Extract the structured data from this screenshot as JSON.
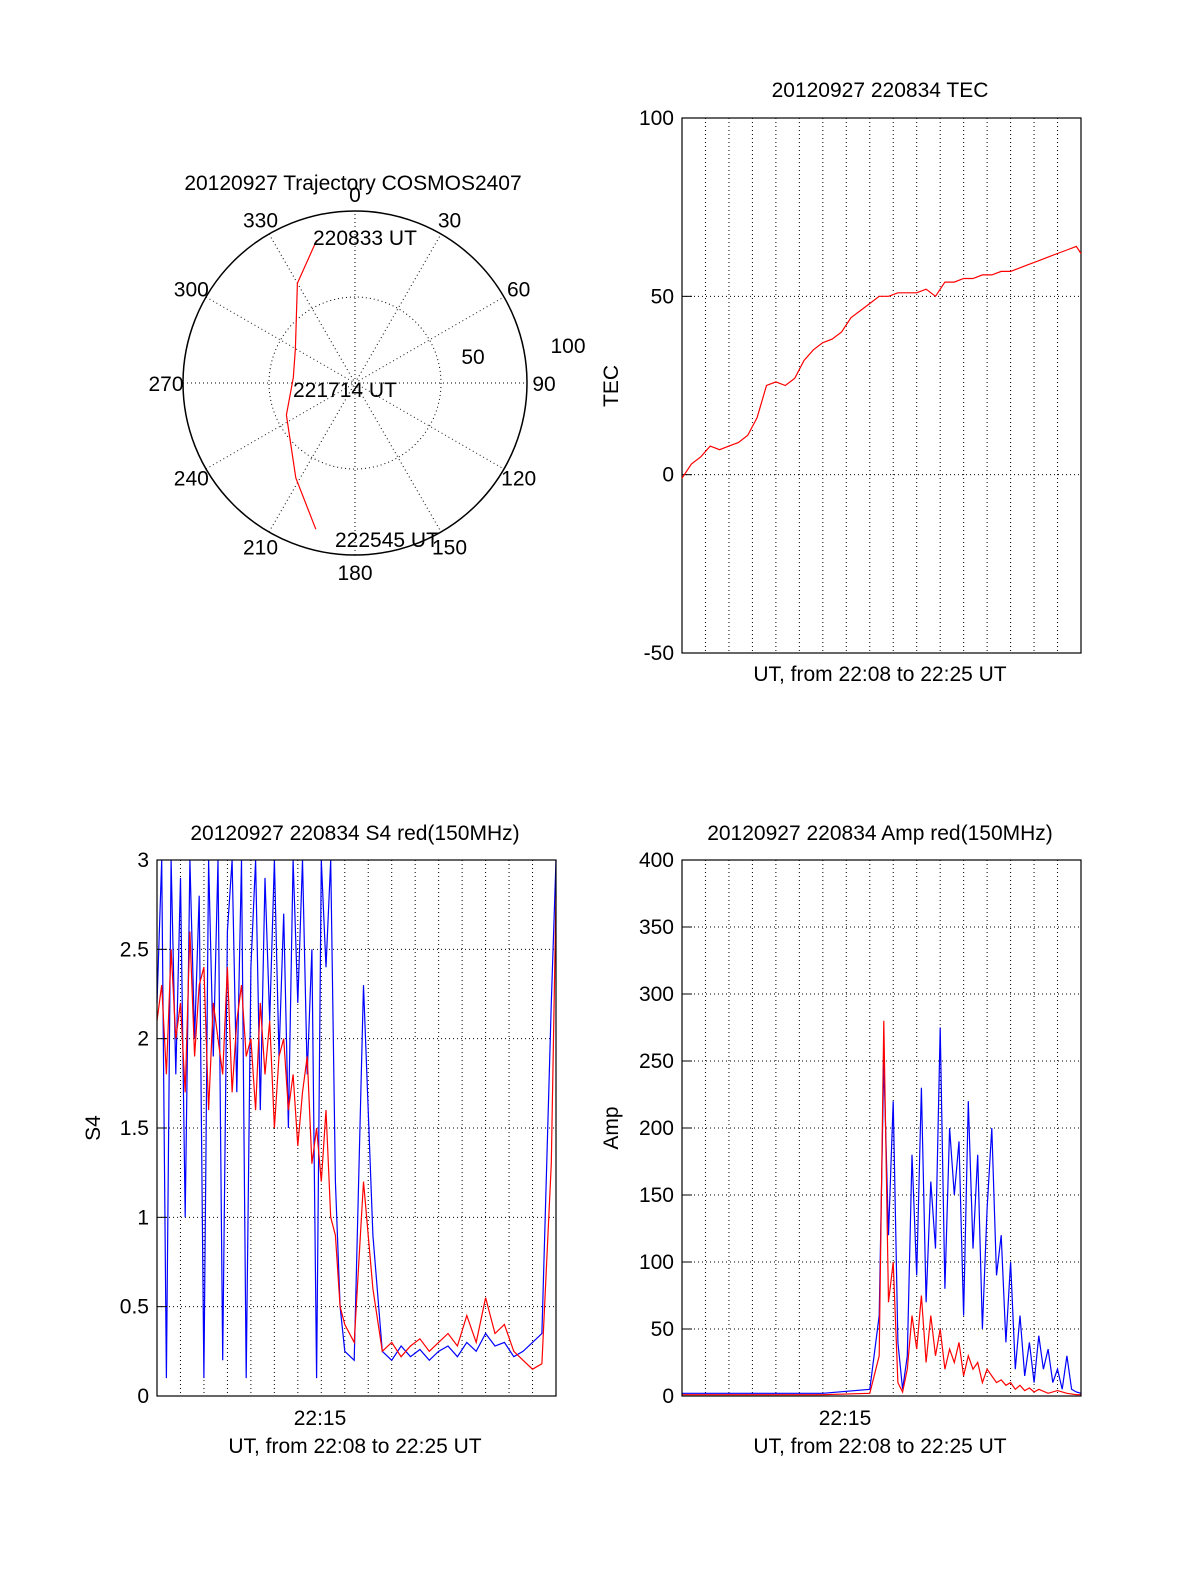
{
  "colors": {
    "red": "#ff0000",
    "blue": "#0000ff",
    "axis": "#000000"
  },
  "chart_data": [
    {
      "type": "polar",
      "title": "20120927 Trajectory COSMOS2407",
      "azimuth_labels": [
        "0",
        "30",
        "60",
        "90",
        "120",
        "150",
        "180",
        "210",
        "240",
        "270",
        "300",
        "330"
      ],
      "radial_labels": [
        "50",
        "100"
      ],
      "time_labels": {
        "start": "220833 UT",
        "middle": "221714 UT",
        "end": "222545 UT"
      },
      "series": [
        {
          "color": "red",
          "points": [
            {
              "az": 345,
              "r": 86
            },
            {
              "az": 330,
              "r": 67
            },
            {
              "az": 300,
              "r": 40
            },
            {
              "az": 275,
              "r": 36
            },
            {
              "az": 245,
              "r": 44
            },
            {
              "az": 212,
              "r": 65
            },
            {
              "az": 195,
              "r": 88
            }
          ]
        }
      ]
    },
    {
      "type": "line",
      "title": "20120927 220834 TEC",
      "xlabel": "UT, from 22:08 to 22:25 UT",
      "ylabel": "TEC",
      "ylim": [
        -50,
        100
      ],
      "yticks": [
        "-50",
        "0",
        "50",
        "100"
      ],
      "xlim_minutes": [
        0,
        17
      ],
      "grid": true,
      "series": [
        {
          "color": "red",
          "x": [
            0,
            0.4,
            0.8,
            1.2,
            1.6,
            2.0,
            2.4,
            2.8,
            3.2,
            3.6,
            4.0,
            4.4,
            4.8,
            5.2,
            5.6,
            6.0,
            6.4,
            6.8,
            7.2,
            7.6,
            8.0,
            8.4,
            8.8,
            9.2,
            9.6,
            10.0,
            10.4,
            10.8,
            11.2,
            11.6,
            12.0,
            12.4,
            12.8,
            13.2,
            13.6,
            14.0,
            14.4,
            14.8,
            15.2,
            15.6,
            16.0,
            16.4,
            16.8,
            17.0
          ],
          "y": [
            -1,
            3,
            5,
            8,
            7,
            8,
            9,
            11,
            16,
            25,
            26,
            25,
            27,
            32,
            35,
            37,
            38,
            40,
            44,
            46,
            48,
            50,
            50,
            51,
            51,
            51,
            52,
            50,
            54,
            54,
            55,
            55,
            56,
            56,
            57,
            57,
            58,
            59,
            60,
            61,
            62,
            63,
            64,
            62
          ]
        }
      ]
    },
    {
      "type": "line",
      "title": "20120927 220834 S4 red(150MHz)",
      "xlabel": "UT, from 22:08 to 22:25 UT",
      "ylabel": "S4",
      "ylim": [
        0,
        3
      ],
      "yticks": [
        "0",
        "0.5",
        "1",
        "1.5",
        "2",
        "2.5",
        "3"
      ],
      "xtick_label": "22:15",
      "xlim_minutes": [
        0,
        17
      ],
      "grid": true,
      "series": [
        {
          "color": "blue",
          "x": [
            0,
            0.2,
            0.4,
            0.6,
            0.8,
            1.0,
            1.2,
            1.4,
            1.6,
            1.8,
            2.0,
            2.2,
            2.4,
            2.6,
            2.8,
            3.0,
            3.2,
            3.4,
            3.6,
            3.8,
            4.0,
            4.2,
            4.4,
            4.6,
            4.8,
            5.0,
            5.2,
            5.4,
            5.6,
            5.8,
            6.0,
            6.2,
            6.4,
            6.6,
            6.8,
            7.0,
            7.2,
            7.4,
            7.6,
            7.8,
            8.0,
            8.4,
            8.8,
            9.2,
            9.6,
            10.0,
            10.4,
            10.8,
            11.2,
            11.6,
            12.0,
            12.4,
            12.8,
            13.2,
            13.6,
            14.0,
            14.4,
            14.8,
            15.2,
            15.6,
            16.0,
            16.4,
            16.8,
            17.0
          ],
          "y": [
            2.2,
            3,
            0.1,
            3,
            1.8,
            2.9,
            1.0,
            3,
            2.0,
            2.8,
            0.1,
            3,
            1.9,
            3,
            0.2,
            2.6,
            3,
            1.7,
            3,
            0.1,
            2.4,
            3,
            1.6,
            2.9,
            2.1,
            3,
            1.9,
            2.7,
            1.5,
            3,
            2.2,
            3,
            1.8,
            2.5,
            0.1,
            3,
            2.4,
            3,
            1.2,
            0.5,
            0.25,
            0.2,
            2.3,
            0.9,
            0.25,
            0.2,
            0.28,
            0.22,
            0.26,
            0.2,
            0.25,
            0.28,
            0.22,
            0.3,
            0.25,
            0.35,
            0.28,
            0.3,
            0.22,
            0.25,
            0.3,
            0.35,
            2.2,
            3
          ]
        },
        {
          "color": "red",
          "x": [
            0,
            0.2,
            0.4,
            0.6,
            0.8,
            1.0,
            1.2,
            1.4,
            1.6,
            1.8,
            2.0,
            2.2,
            2.4,
            2.6,
            2.8,
            3.0,
            3.2,
            3.4,
            3.6,
            3.8,
            4.0,
            4.2,
            4.4,
            4.6,
            4.8,
            5.0,
            5.2,
            5.4,
            5.6,
            5.8,
            6.0,
            6.2,
            6.4,
            6.6,
            6.8,
            7.0,
            7.2,
            7.4,
            7.6,
            7.8,
            8.0,
            8.4,
            8.8,
            9.2,
            9.6,
            10.0,
            10.4,
            10.8,
            11.2,
            11.6,
            12.0,
            12.4,
            12.8,
            13.2,
            13.6,
            14.0,
            14.4,
            14.8,
            15.2,
            15.6,
            16.0,
            16.4,
            16.8,
            17.0
          ],
          "y": [
            2.1,
            2.3,
            1.8,
            2.5,
            2.0,
            2.2,
            1.7,
            2.6,
            1.9,
            2.3,
            2.4,
            1.6,
            2.2,
            2.0,
            1.8,
            2.4,
            1.7,
            2.1,
            2.3,
            1.9,
            2.0,
            1.6,
            2.2,
            1.8,
            2.1,
            1.5,
            1.9,
            2.0,
            1.6,
            1.8,
            1.4,
            1.7,
            1.9,
            1.3,
            1.5,
            1.2,
            1.6,
            1.0,
            0.9,
            0.5,
            0.4,
            0.3,
            1.2,
            0.6,
            0.25,
            0.3,
            0.22,
            0.28,
            0.32,
            0.25,
            0.3,
            0.35,
            0.28,
            0.45,
            0.3,
            0.55,
            0.35,
            0.4,
            0.25,
            0.2,
            0.15,
            0.18,
            1.3,
            2.8
          ]
        }
      ]
    },
    {
      "type": "line",
      "title": "20120927 220834 Amp red(150MHz)",
      "xlabel": "UT, from 22:08 to 22:25 UT",
      "ylabel": "Amp",
      "ylim": [
        0,
        400
      ],
      "yticks": [
        "0",
        "50",
        "100",
        "150",
        "200",
        "250",
        "300",
        "350",
        "400"
      ],
      "xtick_label": "22:15",
      "xlim_minutes": [
        0,
        17
      ],
      "grid": true,
      "series": [
        {
          "color": "blue",
          "x": [
            0,
            2,
            4,
            6,
            8,
            8.4,
            8.6,
            8.8,
            9.0,
            9.2,
            9.4,
            9.6,
            9.8,
            10.0,
            10.2,
            10.4,
            10.6,
            10.8,
            11.0,
            11.2,
            11.4,
            11.6,
            11.8,
            12.0,
            12.2,
            12.4,
            12.6,
            12.8,
            13.0,
            13.2,
            13.4,
            13.6,
            13.8,
            14.0,
            14.2,
            14.4,
            14.6,
            14.8,
            15.0,
            15.2,
            15.4,
            15.6,
            15.8,
            16.0,
            16.2,
            16.4,
            16.6,
            16.8,
            17.0
          ],
          "y": [
            2,
            2,
            2,
            2,
            5,
            60,
            250,
            120,
            220,
            40,
            5,
            30,
            180,
            90,
            230,
            70,
            160,
            110,
            275,
            80,
            200,
            150,
            190,
            60,
            220,
            110,
            180,
            50,
            140,
            200,
            90,
            120,
            40,
            100,
            20,
            60,
            15,
            40,
            10,
            45,
            20,
            35,
            10,
            20,
            5,
            30,
            5,
            3,
            2
          ]
        },
        {
          "color": "red",
          "x": [
            0,
            2,
            4,
            6,
            8,
            8.4,
            8.6,
            8.8,
            9.0,
            9.2,
            9.4,
            9.6,
            9.8,
            10.0,
            10.2,
            10.4,
            10.6,
            10.8,
            11.0,
            11.2,
            11.4,
            11.6,
            11.8,
            12.0,
            12.2,
            12.4,
            12.6,
            12.8,
            13.0,
            13.2,
            13.4,
            13.6,
            13.8,
            14.0,
            14.2,
            14.4,
            14.6,
            14.8,
            15.0,
            15.2,
            15.6,
            16.0,
            16.4,
            16.8,
            17.0
          ],
          "y": [
            1,
            1,
            1,
            1,
            2,
            30,
            280,
            70,
            100,
            10,
            3,
            20,
            60,
            35,
            75,
            25,
            60,
            30,
            50,
            20,
            35,
            25,
            40,
            15,
            30,
            20,
            25,
            10,
            20,
            15,
            10,
            12,
            8,
            10,
            5,
            8,
            4,
            6,
            3,
            5,
            2,
            4,
            2,
            1,
            1
          ]
        }
      ]
    }
  ]
}
